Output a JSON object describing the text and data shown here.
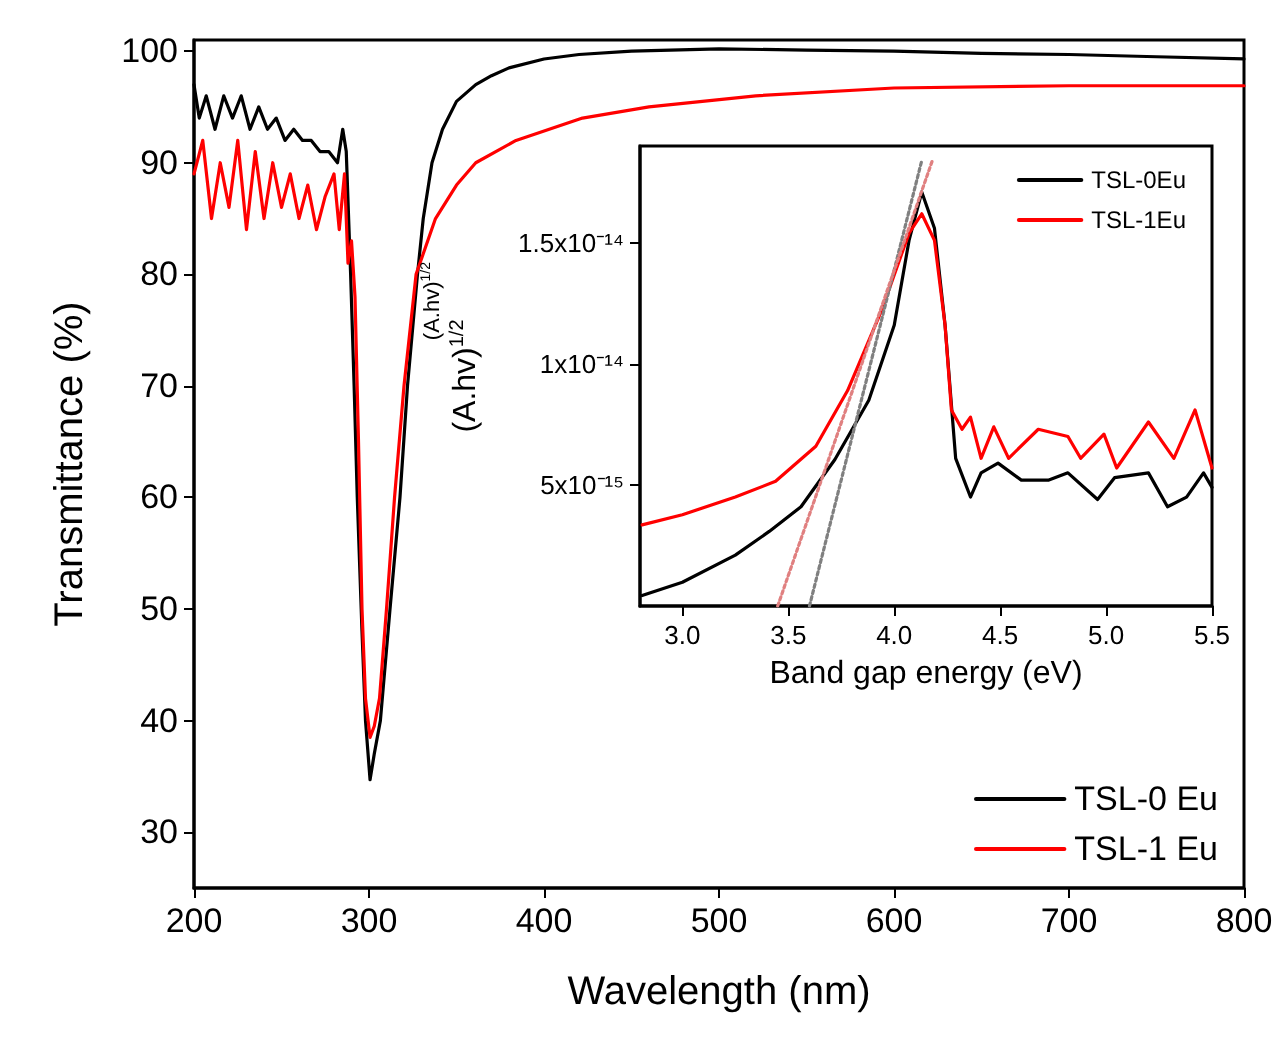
{
  "chart_data": [
    {
      "type": "line",
      "xlabel": "Wavelength (nm)",
      "ylabel": "Transmittance (%)",
      "xlim": [
        200,
        800
      ],
      "xticks": [
        200,
        300,
        400,
        500,
        600,
        700,
        800
      ],
      "ylim": [
        25,
        101
      ],
      "yticks": [
        30,
        40,
        50,
        60,
        70,
        80,
        90,
        100
      ],
      "legend": "bottom right",
      "marker": "none",
      "line_style": "solid",
      "series": [
        {
          "name": "TSL-0 Eu",
          "color": "#000000",
          "x": [
            200,
            203,
            207,
            212,
            217,
            222,
            227,
            232,
            237,
            242,
            247,
            252,
            257,
            262,
            267,
            272,
            277,
            282,
            285,
            287,
            289.5,
            291.5,
            293.3,
            296,
            298,
            300.6,
            303,
            306.5,
            312,
            317.7,
            322,
            327.7,
            331,
            336,
            342,
            350,
            361,
            370,
            380,
            400,
            420,
            450,
            500,
            550,
            600,
            650,
            700,
            750,
            800
          ],
          "values": [
            97,
            94,
            96,
            93,
            96,
            94,
            96,
            93,
            95,
            93,
            94,
            92,
            93,
            92,
            92,
            91,
            91,
            90,
            93,
            91,
            80,
            70,
            60,
            48,
            40,
            34.7,
            37,
            40,
            50,
            60,
            70,
            80,
            85,
            90,
            93,
            95.5,
            97,
            97.8,
            98.5,
            99.3,
            99.7,
            100,
            100.2,
            100.1,
            100,
            99.8,
            99.7,
            99.5,
            99.3
          ]
        },
        {
          "name": "TSL-1 Eu",
          "color": "#ff0000",
          "x": [
            200,
            205,
            210,
            215,
            220,
            225,
            230,
            235,
            240,
            245,
            250,
            255,
            260,
            265,
            270,
            275,
            280,
            283,
            286,
            288,
            290,
            292,
            294,
            296,
            298,
            300.6,
            303,
            306,
            310,
            314.6,
            320,
            326.9,
            338,
            350,
            361,
            384,
            422,
            460,
            521,
            600,
            700,
            800
          ],
          "values": [
            89,
            92,
            85,
            90,
            86,
            92,
            84,
            91,
            85,
            90,
            86,
            89,
            85,
            88,
            84,
            87,
            89,
            84,
            89,
            81,
            83,
            78,
            65,
            50,
            42,
            38.5,
            39.5,
            42,
            50,
            60,
            70,
            80,
            85,
            88,
            90,
            92,
            94,
            95,
            96,
            96.7,
            96.9,
            96.9
          ]
        }
      ]
    },
    {
      "type": "line",
      "xlabel": "Band gap energy (eV)",
      "ylabel": "(A.hv)$^{1/2}$",
      "annotations": [
        "(A.hv)$^{1/2}$"
      ],
      "xlim": [
        2.8,
        5.5
      ],
      "xticks": [
        {
          "value": 3,
          "label": "3.0"
        },
        3.5,
        {
          "value": 4,
          "label": "4.0"
        },
        4.5,
        {
          "value": 5,
          "label": "5.0"
        },
        5.5
      ],
      "ylim": [
        0,
        1.9e-14
      ],
      "yticks": [
        {
          "value": 5e-15,
          "label": "5x10⁻¹⁵"
        },
        {
          "value": 1e-14,
          "label": "1x10⁻¹⁴"
        },
        {
          "value": 1.5e-14,
          "label": "1.5x10⁻¹⁴"
        }
      ],
      "legend": "top right",
      "marker": "none",
      "series": [
        {
          "name": "TSL-0Eu",
          "color": "#000000",
          "line_style": "solid",
          "x": [
            2.81,
            3.0,
            3.25,
            3.41,
            3.56,
            3.72,
            3.88,
            4.0,
            4.07,
            4.13,
            4.19,
            4.24,
            4.29,
            4.36,
            4.41,
            4.49,
            4.6,
            4.73,
            4.82,
            4.96,
            5.04,
            5.2,
            5.29,
            5.38,
            5.46,
            5.5
          ],
          "values": [
            4.3e-16,
            9.8e-16,
            2.1e-15,
            3.08e-15,
            4.1e-15,
            6.05e-15,
            8.5e-15,
            1.16e-14,
            1.51e-14,
            1.71e-14,
            1.56e-14,
            1.16e-14,
            6.1e-15,
            4.5e-15,
            5.5e-15,
            5.9e-15,
            5.2e-15,
            5.2e-15,
            5.5e-15,
            4.4e-15,
            5.3e-15,
            5.5e-15,
            4.1e-15,
            4.5e-15,
            5.5e-15,
            4.9e-15
          ]
        },
        {
          "name": "TSL-1Eu",
          "color": "#ff0000",
          "line_style": "solid",
          "x": [
            2.81,
            3.0,
            3.25,
            3.44,
            3.63,
            3.78,
            3.94,
            4.07,
            4.13,
            4.19,
            4.24,
            4.27,
            4.32,
            4.36,
            4.41,
            4.47,
            4.54,
            4.68,
            4.82,
            4.88,
            4.99,
            5.05,
            5.2,
            5.32,
            5.42,
            5.5
          ],
          "values": [
            3.35e-15,
            3.77e-15,
            4.5e-15,
            5.15e-15,
            6.6e-15,
            8.9e-15,
            1.22e-14,
            1.54e-14,
            1.62e-14,
            1.51e-14,
            1.16e-14,
            8.1e-15,
            7.3e-15,
            7.8e-15,
            6.1e-15,
            7.4e-15,
            6.1e-15,
            7.3e-15,
            7e-15,
            6.1e-15,
            7.1e-15,
            5.7e-15,
            7.6e-15,
            6.1e-15,
            8.1e-15,
            5.7e-15
          ]
        },
        {
          "type": "line",
          "color": "#808080",
          "line_style": "dotted",
          "x": [
            3.6,
            4.13
          ],
          "values": [
            0,
            1.84e-14
          ]
        },
        {
          "type": "line",
          "color": "#e08080",
          "line_style": "dotted",
          "x": [
            3.45,
            4.18
          ],
          "values": [
            0,
            1.84e-14
          ]
        }
      ]
    }
  ]
}
